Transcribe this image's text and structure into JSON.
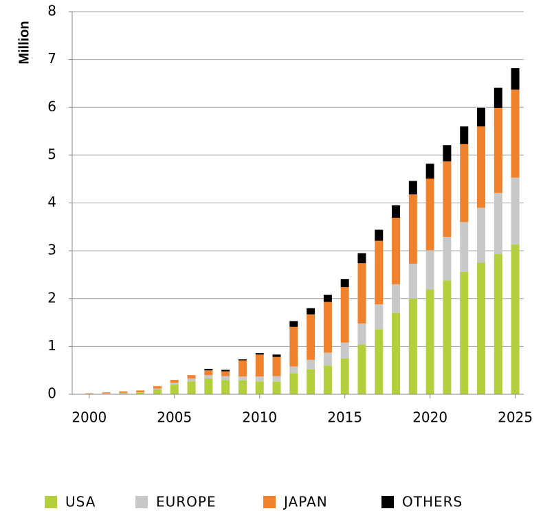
{
  "chart_data": {
    "type": "stacked_bar",
    "y_label": "Million",
    "x": [
      2000,
      2001,
      2002,
      2003,
      2004,
      2005,
      2006,
      2007,
      2008,
      2009,
      2010,
      2011,
      2012,
      2013,
      2014,
      2015,
      2016,
      2017,
      2018,
      2019,
      2020,
      2021,
      2022,
      2023,
      2024,
      2025
    ],
    "xlim": [
      1999,
      2025.5
    ],
    "xticks": [
      2000,
      2005,
      2010,
      2015,
      2020,
      2025
    ],
    "ylim": [
      0,
      8
    ],
    "yticks": [
      0,
      1,
      2,
      3,
      4,
      5,
      6,
      7,
      8
    ],
    "grid": true,
    "legend": "bottom",
    "series": [
      {
        "name": "USA",
        "color": "#b3cf3c",
        "values": [
          0.005,
          0.01,
          0.02,
          0.03,
          0.1,
          0.2,
          0.27,
          0.33,
          0.3,
          0.29,
          0.27,
          0.26,
          0.44,
          0.52,
          0.6,
          0.75,
          1.04,
          1.36,
          1.7,
          2.0,
          2.19,
          2.38,
          2.56,
          2.75,
          2.93,
          3.13
        ]
      },
      {
        "name": "EUROPE",
        "color": "#c8c8c8",
        "values": [
          0.005,
          0.01,
          0.01,
          0.01,
          0.02,
          0.04,
          0.06,
          0.07,
          0.08,
          0.08,
          0.1,
          0.12,
          0.14,
          0.2,
          0.27,
          0.33,
          0.44,
          0.52,
          0.6,
          0.73,
          0.82,
          0.91,
          1.04,
          1.15,
          1.28,
          1.4
        ]
      },
      {
        "name": "JAPAN",
        "color": "#f0822d",
        "values": [
          0.01,
          0.02,
          0.03,
          0.04,
          0.05,
          0.06,
          0.07,
          0.1,
          0.1,
          0.34,
          0.46,
          0.4,
          0.83,
          0.95,
          1.06,
          1.16,
          1.26,
          1.33,
          1.39,
          1.45,
          1.5,
          1.58,
          1.63,
          1.7,
          1.78,
          1.84
        ]
      },
      {
        "name": "OTHERS",
        "color": "#000000",
        "values": [
          0,
          0,
          0,
          0,
          0,
          0,
          0,
          0.03,
          0.03,
          0.02,
          0.03,
          0.05,
          0.12,
          0.13,
          0.15,
          0.17,
          0.21,
          0.23,
          0.26,
          0.28,
          0.31,
          0.34,
          0.37,
          0.39,
          0.42,
          0.45
        ]
      }
    ]
  }
}
